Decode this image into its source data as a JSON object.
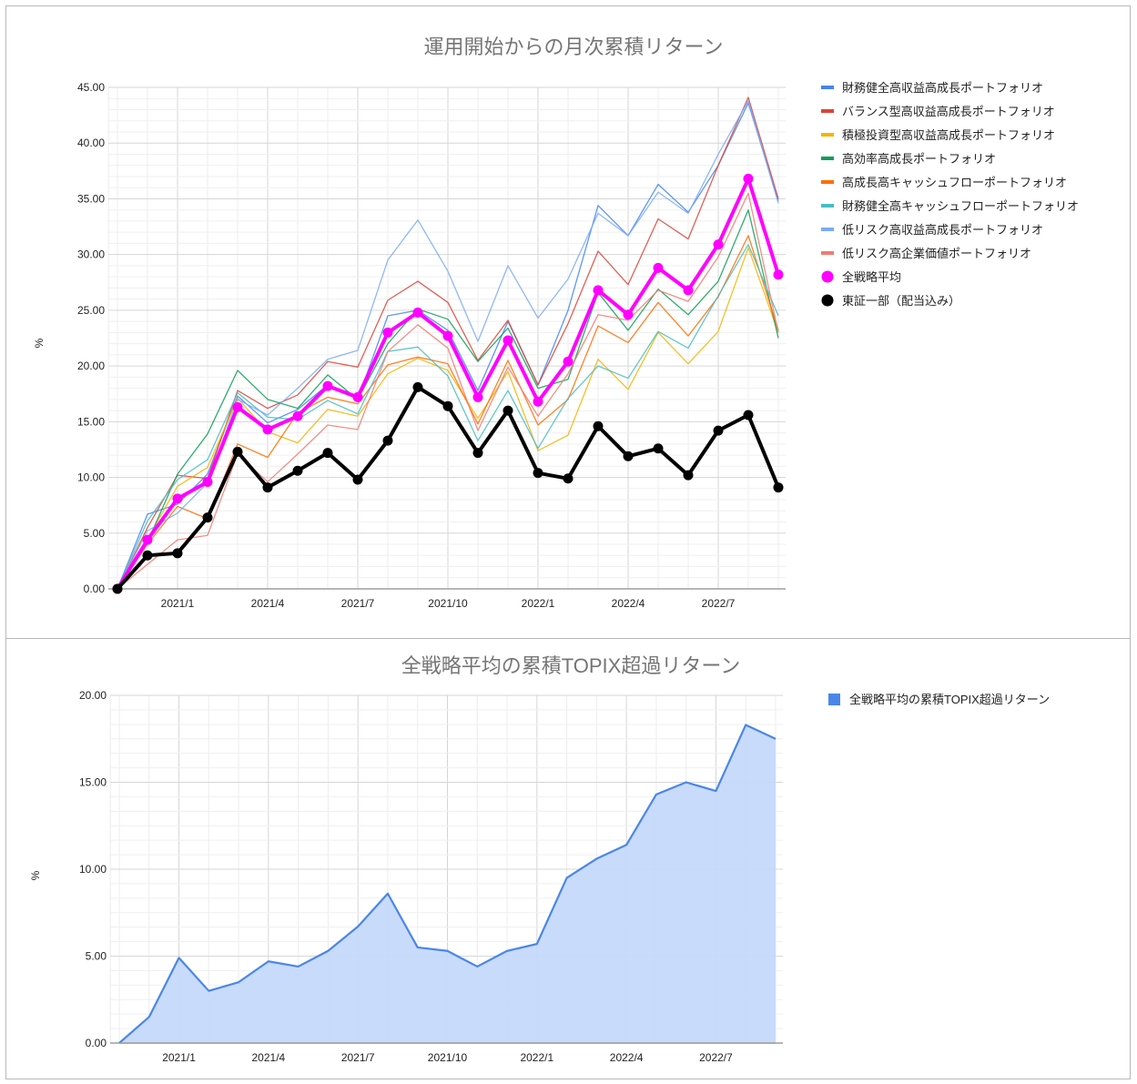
{
  "chart_data": [
    {
      "type": "line",
      "title": "運用開始からの月次累積リターン",
      "xlabel": "",
      "ylabel": "%",
      "ylim": [
        0,
        45
      ],
      "yticks": [
        "0.00",
        "5.00",
        "10.00",
        "15.00",
        "20.00",
        "25.00",
        "30.00",
        "35.00",
        "40.00",
        "45.00"
      ],
      "grid": true,
      "legend_position": "right",
      "x": [
        "2020/11",
        "2020/12",
        "2021/1",
        "2021/2",
        "2021/3",
        "2021/4",
        "2021/5",
        "2021/6",
        "2021/7",
        "2021/8",
        "2021/9",
        "2021/10",
        "2021/11",
        "2021/12",
        "2022/1",
        "2022/2",
        "2022/3",
        "2022/4",
        "2022/5",
        "2022/6",
        "2022/7",
        "2022/8",
        "2022/9"
      ],
      "xtick_labels": [
        "2021/1",
        "2021/4",
        "2021/7",
        "2021/10",
        "2022/1",
        "2022/4",
        "2022/7"
      ],
      "series": [
        {
          "name": "財務健全高収益高成長ポートフォリオ",
          "color": "#4285f4",
          "width": 1.3,
          "values": [
            0,
            6.7,
            7.6,
            10.3,
            17.3,
            14.9,
            16.1,
            18.3,
            17.0,
            24.5,
            25.0,
            23.2,
            17.8,
            24.0,
            18.3,
            25.0,
            34.4,
            31.7,
            36.3,
            33.8,
            38.0,
            43.6,
            34.8
          ]
        },
        {
          "name": "バランス型高収益高成長ポートフォリオ",
          "color": "#db4437",
          "width": 1.3,
          "values": [
            0,
            5.5,
            10.2,
            9.9,
            17.8,
            16.2,
            17.4,
            20.4,
            19.9,
            25.9,
            27.6,
            25.7,
            20.5,
            24.1,
            18.3,
            23.8,
            30.3,
            27.3,
            33.2,
            31.4,
            38.0,
            44.1,
            35.0
          ]
        },
        {
          "name": "積極投資型高収益高成長ポートフォリオ",
          "color": "#f4b400",
          "width": 1.3,
          "values": [
            0,
            4.5,
            9.2,
            10.9,
            17.1,
            14.1,
            13.1,
            16.1,
            15.5,
            19.3,
            20.7,
            19.6,
            15.3,
            19.5,
            12.4,
            13.8,
            20.6,
            17.9,
            23.0,
            20.2,
            23.1,
            30.6,
            23.0
          ]
        },
        {
          "name": "高効率高成長ポートフォリオ",
          "color": "#0f9d58",
          "width": 1.3,
          "values": [
            0,
            4.2,
            10.3,
            13.9,
            19.6,
            17.0,
            16.2,
            19.2,
            17.0,
            22.0,
            25.1,
            24.2,
            20.4,
            23.4,
            18.0,
            18.8,
            26.6,
            23.2,
            26.9,
            24.6,
            27.6,
            34.0,
            22.5
          ]
        },
        {
          "name": "高成長高キャッシュフローポートフォリオ",
          "color": "#ff6d00",
          "width": 1.3,
          "values": [
            0,
            4.0,
            7.4,
            6.3,
            13.0,
            11.8,
            15.8,
            17.2,
            16.6,
            20.1,
            20.8,
            20.2,
            14.8,
            20.5,
            14.7,
            17.0,
            23.6,
            22.1,
            25.7,
            22.7,
            26.2,
            31.7,
            23.2
          ]
        },
        {
          "name": "財務健全高キャッシュフローポートフォリオ",
          "color": "#46bdc6",
          "width": 1.3,
          "values": [
            0,
            6.1,
            9.8,
            11.6,
            17.6,
            15.4,
            15.2,
            16.9,
            15.7,
            21.3,
            21.7,
            19.1,
            13.3,
            17.8,
            12.6,
            17.1,
            20.0,
            18.9,
            23.1,
            21.6,
            26.3,
            30.9,
            24.5
          ]
        },
        {
          "name": "低リスク高収益高成長ポートフォリオ",
          "color": "#7baaf7",
          "width": 1.3,
          "values": [
            0,
            5.2,
            6.8,
            9.5,
            17.0,
            15.6,
            18.0,
            20.6,
            21.4,
            29.5,
            33.1,
            28.5,
            22.2,
            29.0,
            24.3,
            27.8,
            33.7,
            31.7,
            35.6,
            33.7,
            39.0,
            43.8,
            34.6
          ]
        },
        {
          "name": "低リスク高企業価値ポートフォリオ",
          "color": "#f07b72",
          "width": 1.3,
          "values": [
            0,
            2.2,
            4.4,
            4.8,
            12.1,
            9.6,
            12.1,
            14.7,
            14.3,
            21.3,
            23.7,
            21.6,
            14.2,
            19.9,
            15.5,
            19.3,
            24.6,
            24.1,
            26.8,
            25.8,
            29.8,
            35.5,
            23.0
          ]
        },
        {
          "name": "全戦略平均",
          "color": "#ff00ff",
          "width": 4,
          "marker": "circle",
          "values": [
            0,
            4.4,
            8.1,
            9.6,
            16.3,
            14.3,
            15.5,
            18.2,
            17.2,
            23.0,
            24.8,
            22.7,
            17.2,
            22.3,
            16.8,
            20.4,
            26.8,
            24.6,
            28.8,
            26.8,
            30.9,
            36.8,
            28.2
          ]
        },
        {
          "name": "東証一部（配当込み）",
          "color": "#000000",
          "width": 4,
          "marker": "circle",
          "values": [
            0,
            3.0,
            3.2,
            6.4,
            12.3,
            9.1,
            10.6,
            12.2,
            9.8,
            13.3,
            18.1,
            16.4,
            12.2,
            16.0,
            10.4,
            9.9,
            14.6,
            11.9,
            12.6,
            10.2,
            14.2,
            15.6,
            9.1
          ]
        }
      ]
    },
    {
      "type": "area",
      "title": "全戦略平均の累積TOPIX超過リターン",
      "xlabel": "",
      "ylabel": "%",
      "ylim": [
        0,
        20
      ],
      "yticks": [
        "0.00",
        "5.00",
        "10.00",
        "15.00",
        "20.00"
      ],
      "grid": true,
      "legend_position": "right",
      "x": [
        "2020/11",
        "2020/12",
        "2021/1",
        "2021/2",
        "2021/3",
        "2021/4",
        "2021/5",
        "2021/6",
        "2021/7",
        "2021/8",
        "2021/9",
        "2021/10",
        "2021/11",
        "2021/12",
        "2022/1",
        "2022/2",
        "2022/3",
        "2022/4",
        "2022/5",
        "2022/6",
        "2022/7",
        "2022/8",
        "2022/9"
      ],
      "xtick_labels": [
        "2021/1",
        "2021/4",
        "2021/7",
        "2021/10",
        "2022/1",
        "2022/4",
        "2022/7"
      ],
      "series": [
        {
          "name": "全戦略平均の累積TOPIX超過リターン",
          "color": "#4a86e8",
          "fill": "#c5d9fb",
          "values": [
            0,
            1.5,
            4.9,
            3.0,
            3.5,
            4.7,
            4.4,
            5.3,
            6.7,
            8.6,
            5.5,
            5.3,
            4.4,
            5.3,
            5.7,
            9.5,
            10.6,
            11.4,
            14.3,
            15.0,
            14.5,
            18.3,
            17.5
          ]
        }
      ]
    }
  ]
}
